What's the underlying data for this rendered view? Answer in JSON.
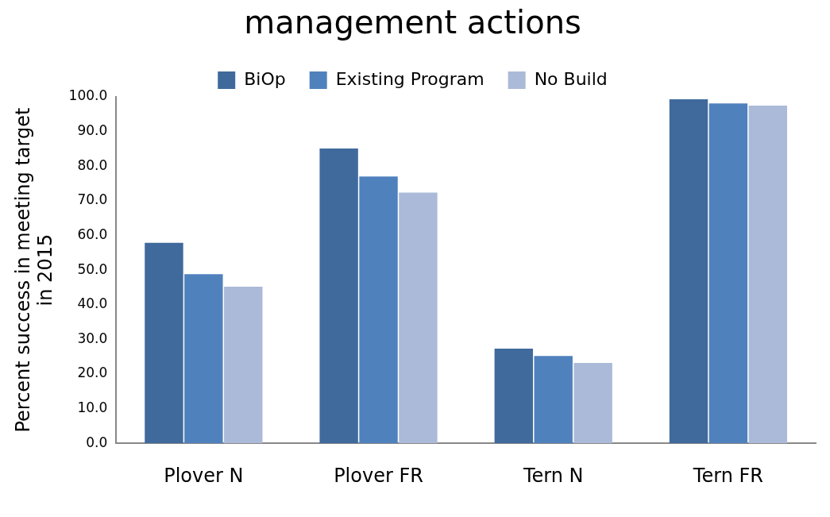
{
  "chart_data": {
    "type": "bar",
    "title": "management actions",
    "ylabel": "Percent success in meeting target\nin 2015",
    "categories": [
      "Plover N",
      "Plover FR",
      "Tern N",
      "Tern FR"
    ],
    "series": [
      {
        "name": "BiOp",
        "color": "#406a9c",
        "values": [
          57.9,
          85.1,
          27.3,
          99.3
        ]
      },
      {
        "name": "Existing Program",
        "color": "#4f81bd",
        "values": [
          48.8,
          77.0,
          25.2,
          98.1
        ]
      },
      {
        "name": "No Build",
        "color": "#abbad8",
        "values": [
          45.2,
          72.4,
          23.2,
          97.5
        ]
      }
    ],
    "ylim": [
      0,
      100
    ],
    "yticks": [
      {
        "value": 0,
        "label": "0.0"
      },
      {
        "value": 10,
        "label": "10.0"
      },
      {
        "value": 20,
        "label": "20.0"
      },
      {
        "value": 30,
        "label": "30.0"
      },
      {
        "value": 40,
        "label": "40.0"
      },
      {
        "value": 50,
        "label": "50.0"
      },
      {
        "value": 60,
        "label": "60.0"
      },
      {
        "value": 70,
        "label": "70.0"
      },
      {
        "value": 80,
        "label": "80.0"
      },
      {
        "value": 90,
        "label": "90.0"
      },
      {
        "value": 100,
        "label": "100.0"
      }
    ],
    "grid": false,
    "legend": "top"
  }
}
